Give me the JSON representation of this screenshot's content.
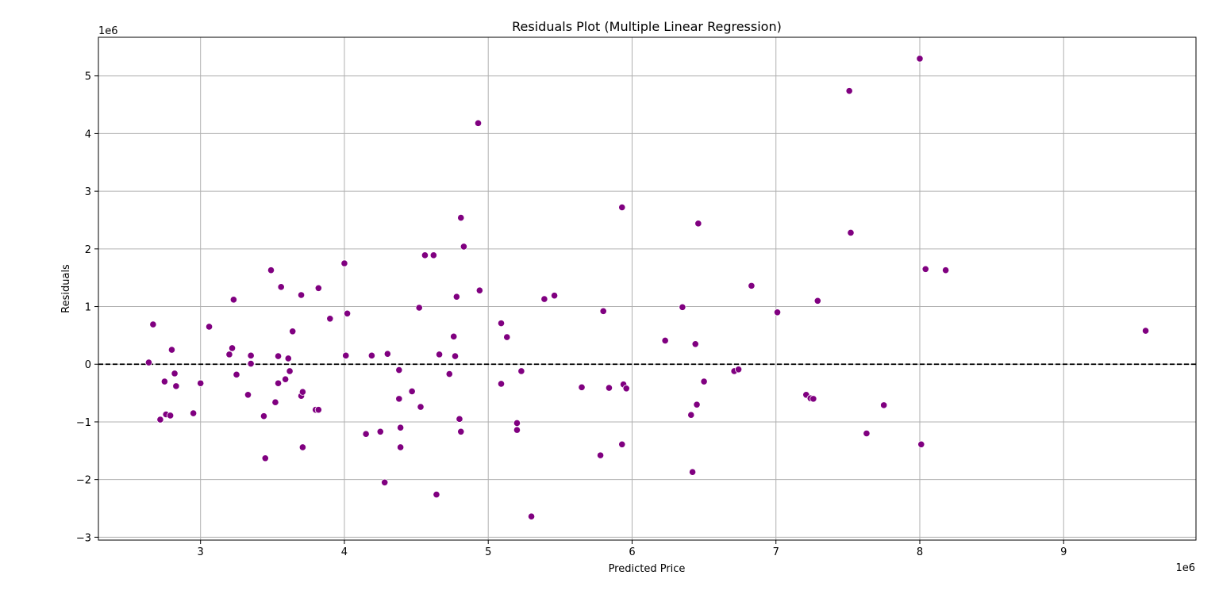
{
  "chart_data": {
    "type": "scatter",
    "title": "Residuals Plot (Multiple Linear Regression)",
    "xlabel": "Predicted Price",
    "ylabel": "Residuals",
    "x_offset_label": "1e6",
    "y_offset_label": "1e6",
    "xlim": [
      2.29,
      9.92
    ],
    "ylim": [
      -3.05,
      5.67
    ],
    "x_ticks": [
      3,
      4,
      5,
      6,
      7,
      8,
      9
    ],
    "x_tick_labels": [
      "3",
      "4",
      "5",
      "6",
      "7",
      "8",
      "9"
    ],
    "y_ticks": [
      -3,
      -2,
      -1,
      0,
      1,
      2,
      3,
      4,
      5
    ],
    "y_tick_labels": [
      "−3",
      "−2",
      "−1",
      "0",
      "1",
      "2",
      "3",
      "4",
      "5"
    ],
    "grid": true,
    "reference_line": 0,
    "marker_color": "#800080",
    "series": [
      {
        "points": [
          [
            2.64,
            0.03
          ],
          [
            2.67,
            0.69
          ],
          [
            2.72,
            -0.96
          ],
          [
            2.75,
            -0.3
          ],
          [
            2.76,
            -0.87
          ],
          [
            2.79,
            -0.89
          ],
          [
            2.8,
            0.25
          ],
          [
            2.82,
            -0.16
          ],
          [
            2.83,
            -0.38
          ],
          [
            2.95,
            -0.85
          ],
          [
            3.0,
            -0.33
          ],
          [
            3.06,
            0.65
          ],
          [
            3.2,
            0.17
          ],
          [
            3.22,
            0.28
          ],
          [
            3.23,
            1.12
          ],
          [
            3.25,
            -0.18
          ],
          [
            3.33,
            -0.53
          ],
          [
            3.35,
            0.15
          ],
          [
            3.35,
            0.01
          ],
          [
            3.44,
            -0.9
          ],
          [
            3.45,
            -1.63
          ],
          [
            3.49,
            1.63
          ],
          [
            3.52,
            -0.66
          ],
          [
            3.54,
            -0.33
          ],
          [
            3.54,
            0.14
          ],
          [
            3.56,
            1.34
          ],
          [
            3.59,
            -0.26
          ],
          [
            3.61,
            0.1
          ],
          [
            3.62,
            -0.12
          ],
          [
            3.64,
            0.57
          ],
          [
            3.7,
            -0.55
          ],
          [
            3.7,
            1.2
          ],
          [
            3.71,
            -0.48
          ],
          [
            3.71,
            -1.44
          ],
          [
            3.8,
            -0.79
          ],
          [
            3.82,
            -0.79
          ],
          [
            3.82,
            1.32
          ],
          [
            3.9,
            0.79
          ],
          [
            4.0,
            1.75
          ],
          [
            4.01,
            0.15
          ],
          [
            4.02,
            0.88
          ],
          [
            4.15,
            -1.21
          ],
          [
            4.19,
            0.15
          ],
          [
            4.25,
            -1.17
          ],
          [
            4.28,
            -2.05
          ],
          [
            4.3,
            0.18
          ],
          [
            4.38,
            -0.1
          ],
          [
            4.38,
            -0.6
          ],
          [
            4.39,
            -1.1
          ],
          [
            4.39,
            -1.44
          ],
          [
            4.47,
            -0.47
          ],
          [
            4.52,
            0.98
          ],
          [
            4.53,
            -0.74
          ],
          [
            4.56,
            1.89
          ],
          [
            4.62,
            1.89
          ],
          [
            4.64,
            -2.26
          ],
          [
            4.66,
            0.17
          ],
          [
            4.73,
            -0.17
          ],
          [
            4.76,
            0.48
          ],
          [
            4.77,
            0.14
          ],
          [
            4.78,
            1.17
          ],
          [
            4.8,
            -0.95
          ],
          [
            4.81,
            -1.17
          ],
          [
            4.81,
            2.54
          ],
          [
            4.83,
            2.04
          ],
          [
            4.93,
            4.18
          ],
          [
            4.94,
            1.28
          ],
          [
            5.09,
            0.71
          ],
          [
            5.09,
            -0.34
          ],
          [
            5.13,
            0.47
          ],
          [
            5.2,
            -1.02
          ],
          [
            5.2,
            -1.14
          ],
          [
            5.23,
            -0.12
          ],
          [
            5.3,
            -2.64
          ],
          [
            5.39,
            1.13
          ],
          [
            5.46,
            1.19
          ],
          [
            5.65,
            -0.4
          ],
          [
            5.78,
            -1.58
          ],
          [
            5.8,
            0.92
          ],
          [
            5.84,
            -0.41
          ],
          [
            5.93,
            2.72
          ],
          [
            5.93,
            -1.39
          ],
          [
            5.94,
            -0.35
          ],
          [
            5.96,
            -0.42
          ],
          [
            6.23,
            0.41
          ],
          [
            6.35,
            0.99
          ],
          [
            6.41,
            -0.88
          ],
          [
            6.42,
            -1.87
          ],
          [
            6.44,
            0.35
          ],
          [
            6.45,
            -0.7
          ],
          [
            6.46,
            2.44
          ],
          [
            6.5,
            -0.3
          ],
          [
            6.71,
            -0.12
          ],
          [
            6.74,
            -0.09
          ],
          [
            6.83,
            1.36
          ],
          [
            7.01,
            0.9
          ],
          [
            7.21,
            -0.53
          ],
          [
            7.24,
            -0.59
          ],
          [
            7.26,
            -0.6
          ],
          [
            7.29,
            1.1
          ],
          [
            7.51,
            4.74
          ],
          [
            7.52,
            2.28
          ],
          [
            7.63,
            -1.2
          ],
          [
            7.75,
            -0.71
          ],
          [
            8.0,
            5.3
          ],
          [
            8.01,
            -1.39
          ],
          [
            8.04,
            1.65
          ],
          [
            8.18,
            1.63
          ],
          [
            9.57,
            0.58
          ]
        ]
      }
    ]
  }
}
